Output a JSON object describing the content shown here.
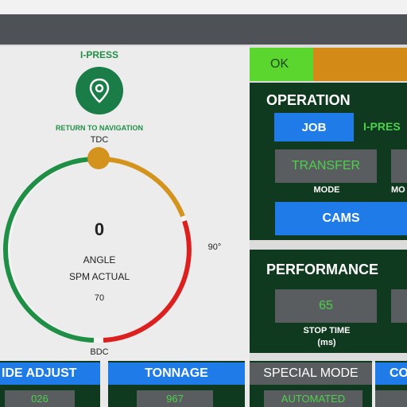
{
  "nav": {
    "title": "I-PRESS",
    "button_label": "RETURN TO NAVIGATION",
    "icon": "location-pin-icon"
  },
  "dial": {
    "tdc": "TDC",
    "bdc": "BDC",
    "deg90": "90°",
    "angle_value": "0",
    "angle_label": "ANGLE",
    "spm_label": "SPM ACTUAL",
    "spm_value": "70",
    "colors": {
      "green": "#1f8f46",
      "amber": "#d4931c",
      "red": "#dc1f1f",
      "track": "#f4f4f4"
    }
  },
  "status": {
    "ok_label": "OK",
    "ok_color": "#5bd62e",
    "warn_color": "#d48a16"
  },
  "operation": {
    "title": "OPERATION",
    "job_button": "JOB",
    "job_value": "I-PRES",
    "mode_value": "TRANSFER",
    "mode_label": "MODE",
    "mode_label_2": "MO",
    "cams_button": "CAMS"
  },
  "performance": {
    "title": "PERFORMANCE",
    "stop_time_value": "65",
    "stop_time_label": "STOP TIME",
    "stop_time_unit": "(ms)"
  },
  "bottom": {
    "slide_adjust": {
      "label": "IDE ADJUST",
      "value": "026"
    },
    "tonnage": {
      "label": "TONNAGE",
      "value": "967"
    },
    "special_mode": {
      "label": "SPECIAL MODE",
      "value": "AUTOMATED"
    },
    "co": {
      "label": "CO"
    }
  }
}
